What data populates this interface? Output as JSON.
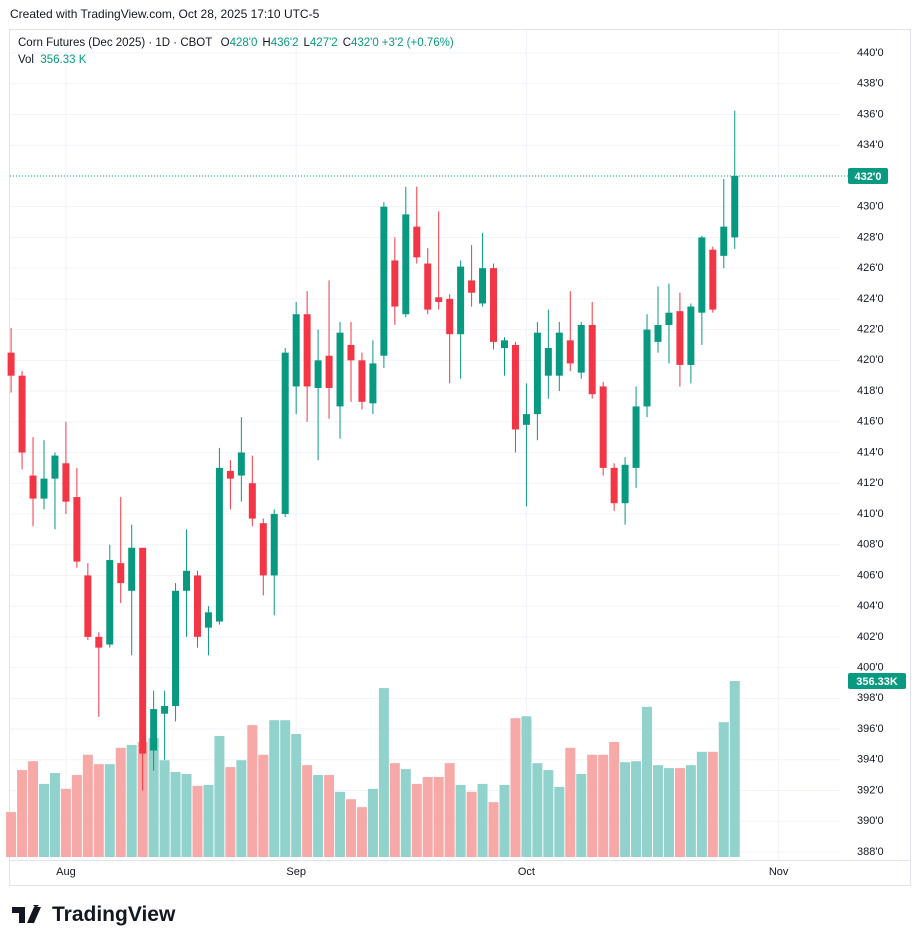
{
  "header": {
    "created": "Created with TradingView.com, Oct 28, 2025 17:10 UTC-5",
    "logo": "TradingView"
  },
  "chart_data": {
    "type": "candlestick",
    "title": "Corn Futures (Dec 2025) · 1D · CBOT",
    "ohlc_legend": [
      {
        "key": "O",
        "value": "428'0"
      },
      {
        "key": "H",
        "value": "436'2"
      },
      {
        "key": "L",
        "value": "427'2"
      },
      {
        "key": "C",
        "value": "432'0"
      }
    ],
    "change_label": "+3'2 (+0.76%)",
    "volume_title": "Vol",
    "volume_label": "356.33 K",
    "last_price_label": "432'0",
    "last_volume_label": "356.33K",
    "open": [
      420.5,
      419.0,
      412.5,
      411.0,
      412.3,
      413.3,
      411.1,
      406.0,
      402.0,
      401.5,
      406.8,
      405.0,
      407.8,
      394.6,
      397.0,
      397.5,
      405.0,
      406.0,
      402.6,
      403.0,
      412.8,
      412.5,
      412.0,
      409.4,
      406.0,
      410.0,
      418.3,
      423.0,
      418.2,
      420.3,
      417.0,
      421.0,
      420.0,
      417.2,
      420.3,
      426.5,
      423.0,
      428.7,
      426.3,
      424.1,
      424.0,
      421.7,
      425.2,
      423.7,
      426.0,
      420.8,
      421.0,
      415.8,
      416.5,
      419.0,
      419.0,
      421.3,
      419.2,
      422.3,
      418.3,
      413.0,
      410.7,
      413.0,
      417.0,
      421.2,
      422.3,
      423.2,
      419.7,
      423.1,
      427.2,
      426.8,
      428.0
    ],
    "high": [
      422.1,
      419.3,
      415.0,
      414.8,
      414.0,
      416.0,
      413.0,
      406.8,
      402.3,
      408.0,
      411.1,
      409.3,
      407.8,
      398.5,
      398.5,
      405.5,
      409.0,
      406.3,
      404.0,
      414.3,
      413.5,
      416.3,
      413.8,
      409.7,
      410.3,
      420.8,
      423.8,
      424.5,
      422.0,
      425.2,
      422.5,
      422.5,
      420.5,
      421.3,
      430.3,
      428.0,
      431.3,
      431.3,
      427.3,
      429.7,
      424.3,
      426.5,
      427.5,
      428.3,
      426.3,
      421.5,
      421.2,
      418.5,
      422.5,
      423.3,
      422.5,
      424.5,
      422.5,
      423.8,
      418.6,
      413.3,
      413.7,
      418.3,
      423.0,
      424.8,
      425.0,
      424.4,
      423.7,
      428.1,
      427.4,
      431.8,
      436.25
    ],
    "low": [
      417.9,
      412.9,
      409.2,
      410.3,
      409.0,
      410.0,
      406.5,
      401.8,
      396.8,
      401.3,
      404.2,
      400.8,
      392.0,
      393.3,
      394.0,
      396.5,
      402.0,
      401.3,
      400.8,
      402.8,
      410.3,
      410.8,
      409.2,
      404.7,
      403.4,
      409.8,
      416.5,
      416.0,
      413.5,
      416.2,
      414.9,
      417.3,
      416.8,
      416.5,
      419.5,
      422.3,
      422.8,
      426.3,
      423.0,
      423.3,
      418.5,
      418.8,
      423.5,
      423.5,
      420.7,
      419.0,
      414.0,
      410.5,
      414.8,
      417.5,
      418.0,
      419.3,
      418.8,
      417.5,
      412.5,
      410.2,
      409.3,
      411.7,
      416.3,
      420.5,
      419.8,
      418.3,
      418.5,
      421.0,
      423.1,
      426.0,
      427.25
    ],
    "close": [
      419.0,
      414.0,
      411.0,
      412.3,
      413.8,
      410.8,
      406.9,
      402.0,
      401.3,
      407.0,
      405.5,
      407.8,
      394.4,
      397.3,
      397.5,
      405.0,
      406.3,
      402.0,
      403.6,
      413.0,
      412.3,
      414.0,
      409.7,
      406.0,
      410.0,
      420.5,
      423.0,
      418.3,
      420.0,
      418.2,
      421.8,
      420.0,
      417.3,
      419.8,
      430.0,
      423.5,
      429.5,
      426.7,
      423.3,
      423.8,
      421.7,
      426.1,
      424.4,
      426.0,
      421.2,
      421.3,
      415.5,
      416.5,
      421.8,
      420.8,
      421.8,
      419.8,
      422.3,
      417.8,
      413.0,
      410.7,
      413.2,
      417.0,
      422.0,
      422.3,
      423.1,
      419.7,
      423.5,
      428.0,
      423.3,
      428.7,
      432.0
    ],
    "volume": [
      91,
      176,
      194,
      148,
      170,
      138,
      166,
      207,
      188,
      188,
      221,
      227,
      233,
      241,
      196,
      172,
      168,
      144,
      146,
      245,
      182,
      196,
      267,
      207,
      277,
      277,
      249,
      186,
      166,
      166,
      132,
      117,
      101,
      138,
      342,
      190,
      178,
      148,
      162,
      162,
      190,
      146,
      132,
      148,
      111,
      146,
      281,
      285,
      190,
      176,
      142,
      221,
      168,
      207,
      207,
      233,
      192,
      194,
      304,
      186,
      180,
      180,
      186,
      213,
      213,
      273,
      356.33
    ],
    "up_color": "#089981",
    "down_color": "#f23645",
    "volume_up_color": "#92d2cc",
    "volume_down_color": "#f7a9a7",
    "xlim": [
      -0.1,
      75.6
    ],
    "xticks": [
      {
        "value": 5,
        "label": "Aug"
      },
      {
        "value": 26,
        "label": "Sep"
      },
      {
        "value": 47,
        "label": "Oct"
      },
      {
        "value": 70,
        "label": "Nov"
      }
    ],
    "ylim": [
      385.85,
      441.5
    ],
    "yticks": [
      {
        "value": 388,
        "label": "388'0"
      },
      {
        "value": 390,
        "label": "390'0"
      },
      {
        "value": 392,
        "label": "392'0"
      },
      {
        "value": 394,
        "label": "394'0"
      },
      {
        "value": 396,
        "label": "396'0"
      },
      {
        "value": 398,
        "label": "398'0"
      },
      {
        "value": 400,
        "label": "400'0"
      },
      {
        "value": 402,
        "label": "402'0"
      },
      {
        "value": 404,
        "label": "404'0"
      },
      {
        "value": 406,
        "label": "406'0"
      },
      {
        "value": 408,
        "label": "408'0"
      },
      {
        "value": 410,
        "label": "410'0"
      },
      {
        "value": 412,
        "label": "412'0"
      },
      {
        "value": 414,
        "label": "414'0"
      },
      {
        "value": 416,
        "label": "416'0"
      },
      {
        "value": 418,
        "label": "418'0"
      },
      {
        "value": 420,
        "label": "420'0"
      },
      {
        "value": 422,
        "label": "422'0"
      },
      {
        "value": 424,
        "label": "424'0"
      },
      {
        "value": 426,
        "label": "426'0"
      },
      {
        "value": 428,
        "label": "428'0"
      },
      {
        "value": 430,
        "label": "430'0"
      },
      {
        "value": 432,
        "label": "432'0"
      },
      {
        "value": 434,
        "label": "434'0"
      },
      {
        "value": 436,
        "label": "436'0"
      },
      {
        "value": 438,
        "label": "438'0"
      },
      {
        "value": 440,
        "label": "440'0"
      }
    ],
    "grid": true
  }
}
